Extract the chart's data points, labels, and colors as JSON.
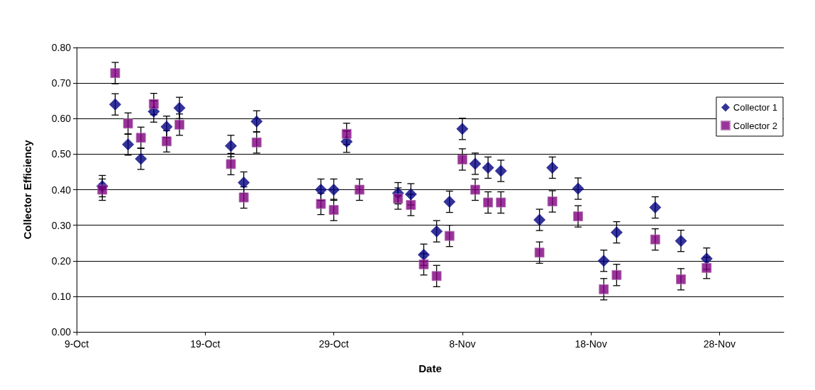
{
  "chart_data": {
    "type": "scatter",
    "xlabel": "Date",
    "ylabel": "Collector Efficiency",
    "xlim": [
      "--10-09",
      "--12-03"
    ],
    "xticks": [
      {
        "value": "--10-09",
        "label": "9-Oct"
      },
      {
        "value": "--10-19",
        "label": "19-Oct"
      },
      {
        "value": "--10-29",
        "label": "29-Oct"
      },
      {
        "value": "--11-08",
        "label": "8-Nov"
      },
      {
        "value": "--11-18",
        "label": "18-Nov"
      },
      {
        "value": "--11-28",
        "label": "28-Nov"
      }
    ],
    "ylim": [
      0,
      0.8
    ],
    "yticks": [
      {
        "value": 0,
        "label": "0.00"
      },
      {
        "value": 0.1,
        "label": "0.10"
      },
      {
        "value": 0.2,
        "label": "0.20"
      },
      {
        "value": 0.3,
        "label": "0.30"
      },
      {
        "value": 0.4,
        "label": "0.40"
      },
      {
        "value": 0.5,
        "label": "0.50"
      },
      {
        "value": 0.6,
        "label": "0.60"
      },
      {
        "value": 0.7,
        "label": "0.70"
      },
      {
        "value": 0.8,
        "label": "0.80"
      }
    ],
    "grid": "y",
    "legend": "right",
    "series": [
      {
        "name": "Collector 1",
        "color": "#000080",
        "marker": "diamond",
        "x": [
          "--10-11",
          "--10-12",
          "--10-13",
          "--10-14",
          "--10-15",
          "--10-16",
          "--10-17",
          "--10-21",
          "--10-22",
          "--10-23",
          "--10-28",
          "--10-29",
          "--10-30",
          "--10-31",
          "--11-03",
          "--11-04",
          "--11-05",
          "--11-06",
          "--11-07",
          "--11-08",
          "--11-09",
          "--11-10",
          "--11-11",
          "--11-14",
          "--11-15",
          "--11-17",
          "--11-19",
          "--11-20",
          "--11-23",
          "--11-25",
          "--11-27"
        ],
        "values": [
          0.41,
          0.64,
          0.527,
          0.487,
          0.62,
          0.577,
          0.63,
          0.523,
          0.42,
          0.592,
          0.4,
          0.4,
          0.535,
          null,
          0.39,
          0.387,
          0.217,
          0.283,
          0.366,
          0.571,
          0.473,
          0.462,
          0.453,
          0.315,
          0.462,
          0.403,
          0.2,
          0.28,
          0.35,
          0.256,
          0.206
        ],
        "errors": [
          0.03,
          0.03,
          0.03,
          0.03,
          0.03,
          0.03,
          0.03,
          0.03,
          0.03,
          0.03,
          0.03,
          0.03,
          0.03,
          null,
          0.03,
          0.03,
          0.03,
          0.03,
          0.03,
          0.03,
          0.03,
          0.03,
          0.03,
          0.03,
          0.03,
          0.03,
          0.03,
          0.03,
          0.03,
          0.03,
          0.03
        ]
      },
      {
        "name": "Collector 2",
        "color": "#800080",
        "marker": "square",
        "x": [
          "--10-11",
          "--10-12",
          "--10-13",
          "--10-14",
          "--10-15",
          "--10-16",
          "--10-17",
          "--10-21",
          "--10-22",
          "--10-23",
          "--10-28",
          "--10-29",
          "--10-30",
          "--10-31",
          "--11-03",
          "--11-04",
          "--11-05",
          "--11-06",
          "--11-07",
          "--11-08",
          "--11-09",
          "--11-10",
          "--11-11",
          "--11-14",
          "--11-15",
          "--11-17",
          "--11-19",
          "--11-20",
          "--11-23",
          "--11-25",
          "--11-27"
        ],
        "values": [
          0.4,
          0.728,
          0.586,
          0.546,
          0.641,
          0.536,
          0.583,
          0.472,
          0.378,
          0.533,
          0.36,
          0.343,
          0.557,
          0.4,
          0.375,
          0.357,
          0.19,
          0.157,
          0.27,
          0.485,
          0.4,
          0.364,
          0.364,
          0.223,
          0.367,
          0.325,
          0.12,
          0.16,
          0.26,
          0.148,
          0.18
        ],
        "errors": [
          0.03,
          0.03,
          0.03,
          0.03,
          0.03,
          0.03,
          0.03,
          0.03,
          0.03,
          0.03,
          0.03,
          0.03,
          0.03,
          0.03,
          0.03,
          0.03,
          0.03,
          0.03,
          0.03,
          0.03,
          0.03,
          0.03,
          0.03,
          0.03,
          0.03,
          0.03,
          0.03,
          0.03,
          0.03,
          0.03,
          0.03
        ]
      }
    ]
  }
}
